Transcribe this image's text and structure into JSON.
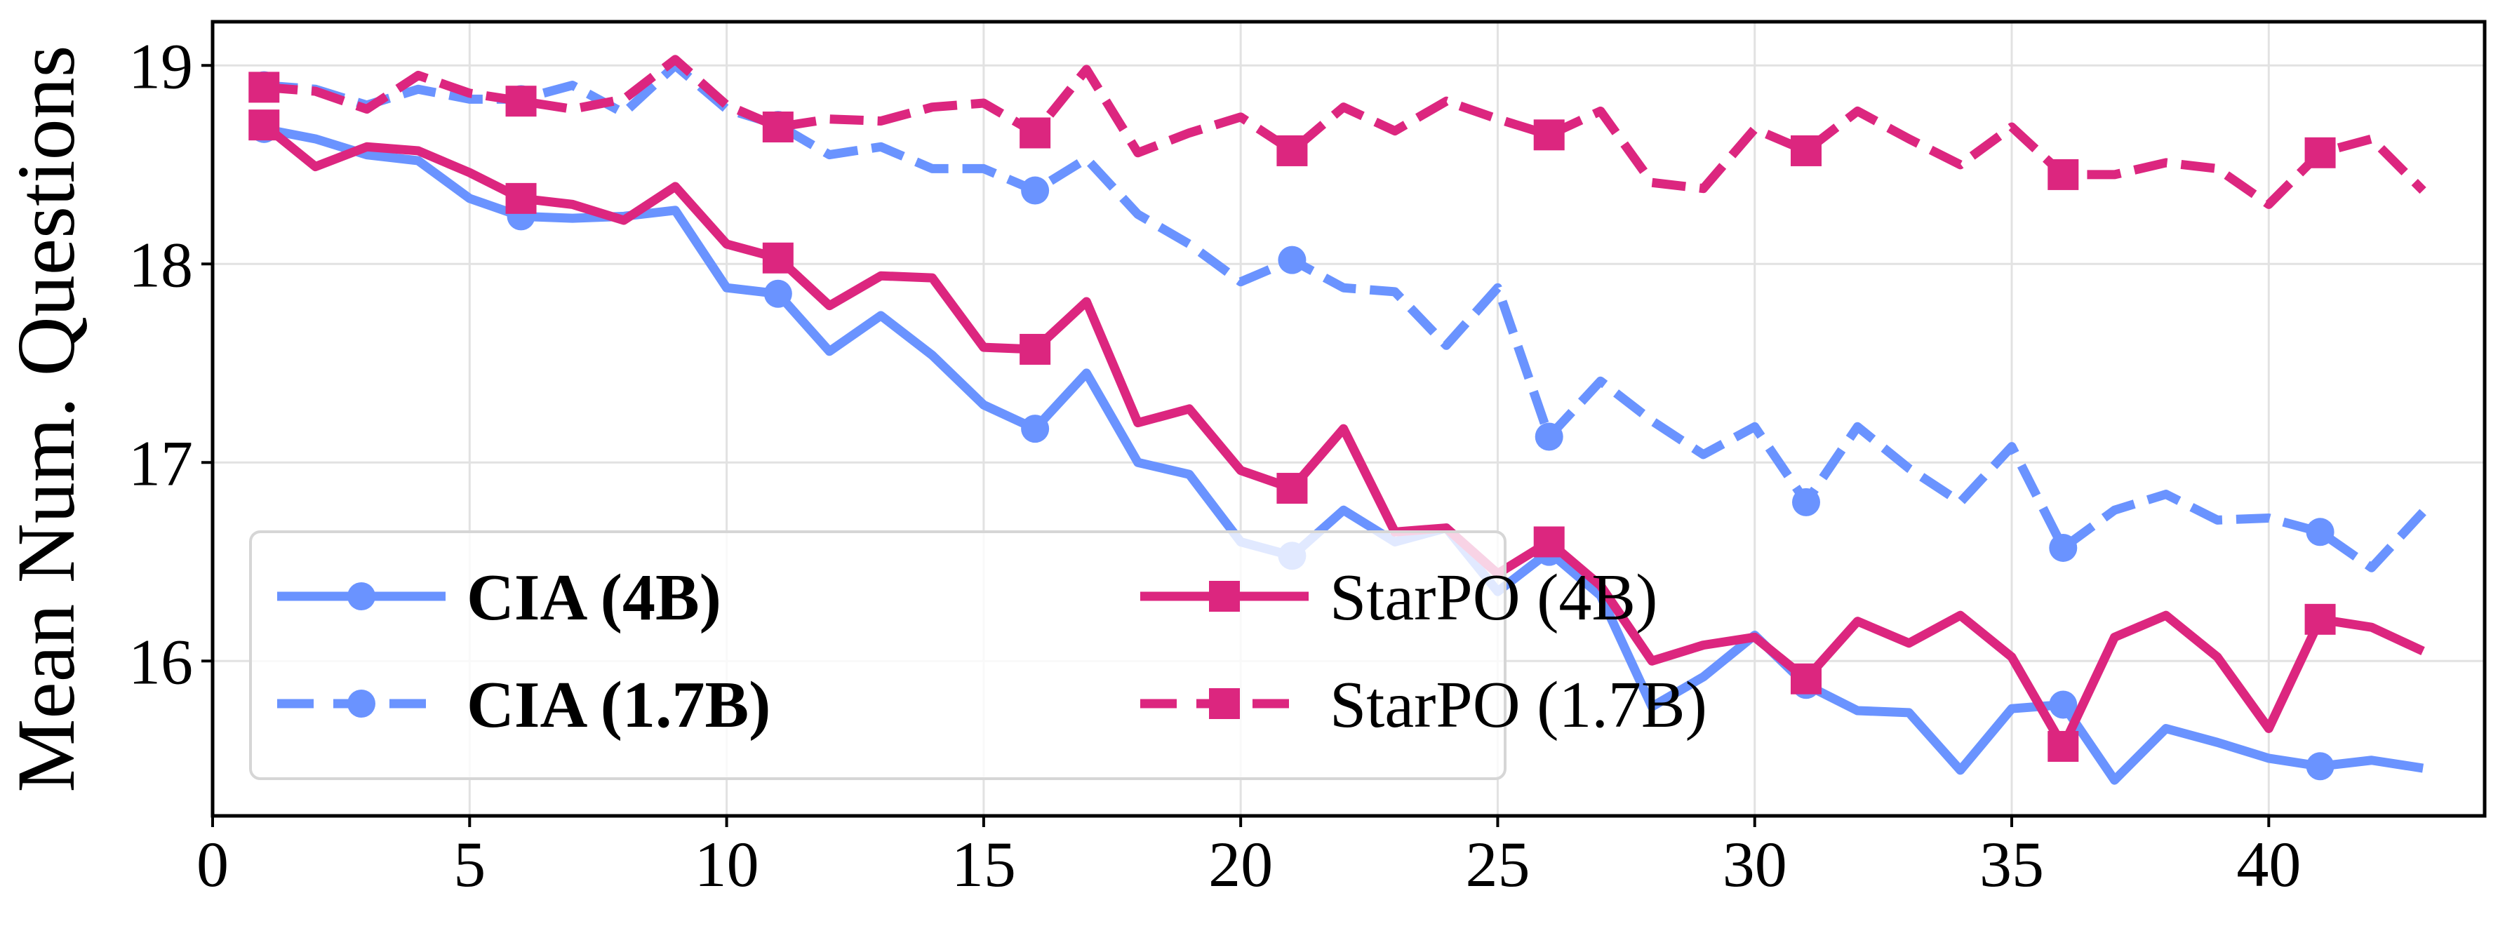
{
  "chart_data": {
    "type": "line",
    "title": "",
    "xlabel": "",
    "ylabel": "Mean Num. Questions",
    "xlim": [
      0,
      44.2
    ],
    "ylim": [
      15.22,
      19.22
    ],
    "xticks": [
      0,
      5,
      10,
      15,
      20,
      25,
      30,
      35,
      40
    ],
    "yticks": [
      16,
      17,
      18,
      19
    ],
    "grid": true,
    "legend_position": "lower-left",
    "marker_every": 5,
    "x": [
      1,
      2,
      3,
      4,
      5,
      6,
      7,
      8,
      9,
      10,
      11,
      12,
      13,
      14,
      15,
      16,
      17,
      18,
      19,
      20,
      21,
      22,
      23,
      24,
      25,
      26,
      27,
      28,
      29,
      30,
      31,
      32,
      33,
      34,
      35,
      36,
      37,
      38,
      39,
      40,
      41,
      42,
      43
    ],
    "series": [
      {
        "name": "CIA (4B)",
        "bold": true,
        "color": "#6a93ff",
        "style": "solid",
        "marker": "circle",
        "values": [
          18.68,
          18.63,
          18.55,
          18.52,
          18.33,
          18.24,
          18.23,
          18.24,
          18.27,
          17.88,
          17.85,
          17.56,
          17.74,
          17.54,
          17.29,
          17.17,
          17.45,
          17.0,
          16.94,
          16.6,
          16.53,
          16.76,
          16.6,
          16.67,
          16.35,
          16.55,
          16.33,
          15.77,
          15.92,
          16.13,
          15.88,
          15.75,
          15.74,
          15.45,
          15.76,
          15.78,
          15.4,
          15.66,
          15.59,
          15.51,
          15.47,
          15.5,
          15.46
        ]
      },
      {
        "name": "StarPO (4B)",
        "bold": false,
        "color": "#dc267f",
        "style": "solid",
        "marker": "square",
        "values": [
          18.7,
          18.49,
          18.59,
          18.57,
          18.46,
          18.33,
          18.3,
          18.22,
          18.39,
          18.1,
          18.03,
          17.79,
          17.94,
          17.93,
          17.58,
          17.57,
          17.81,
          17.2,
          17.27,
          16.96,
          16.87,
          17.17,
          16.65,
          16.67,
          16.44,
          16.6,
          16.38,
          16.0,
          16.08,
          16.12,
          15.91,
          16.2,
          16.09,
          16.23,
          16.02,
          15.57,
          16.12,
          16.23,
          16.02,
          15.66,
          16.21,
          16.17,
          16.05
        ]
      },
      {
        "name": "CIA (1.7B)",
        "bold": true,
        "color": "#6a93ff",
        "style": "dashed",
        "marker": "circle",
        "values": [
          18.9,
          18.88,
          18.8,
          18.88,
          18.83,
          18.83,
          18.9,
          18.76,
          19.0,
          18.78,
          18.7,
          18.55,
          18.59,
          18.48,
          18.48,
          18.37,
          18.53,
          18.25,
          18.1,
          17.91,
          18.02,
          17.88,
          17.86,
          17.59,
          17.88,
          17.13,
          17.41,
          17.21,
          17.04,
          17.18,
          16.8,
          17.18,
          16.97,
          16.8,
          17.08,
          16.57,
          16.76,
          16.84,
          16.71,
          16.72,
          16.65,
          16.47,
          16.75
        ]
      },
      {
        "name": "StarPO (1.7B)",
        "bold": false,
        "color": "#dc267f",
        "style": "dashed",
        "marker": "square",
        "values": [
          18.89,
          18.87,
          18.78,
          18.95,
          18.86,
          18.82,
          18.78,
          18.83,
          19.03,
          18.8,
          18.69,
          18.73,
          18.72,
          18.79,
          18.81,
          18.66,
          18.98,
          18.56,
          18.66,
          18.74,
          18.57,
          18.79,
          18.67,
          18.82,
          18.73,
          18.65,
          18.77,
          18.41,
          18.38,
          18.68,
          18.57,
          18.77,
          18.63,
          18.5,
          18.69,
          18.45,
          18.45,
          18.51,
          18.48,
          18.3,
          18.56,
          18.63,
          18.37
        ]
      }
    ]
  }
}
